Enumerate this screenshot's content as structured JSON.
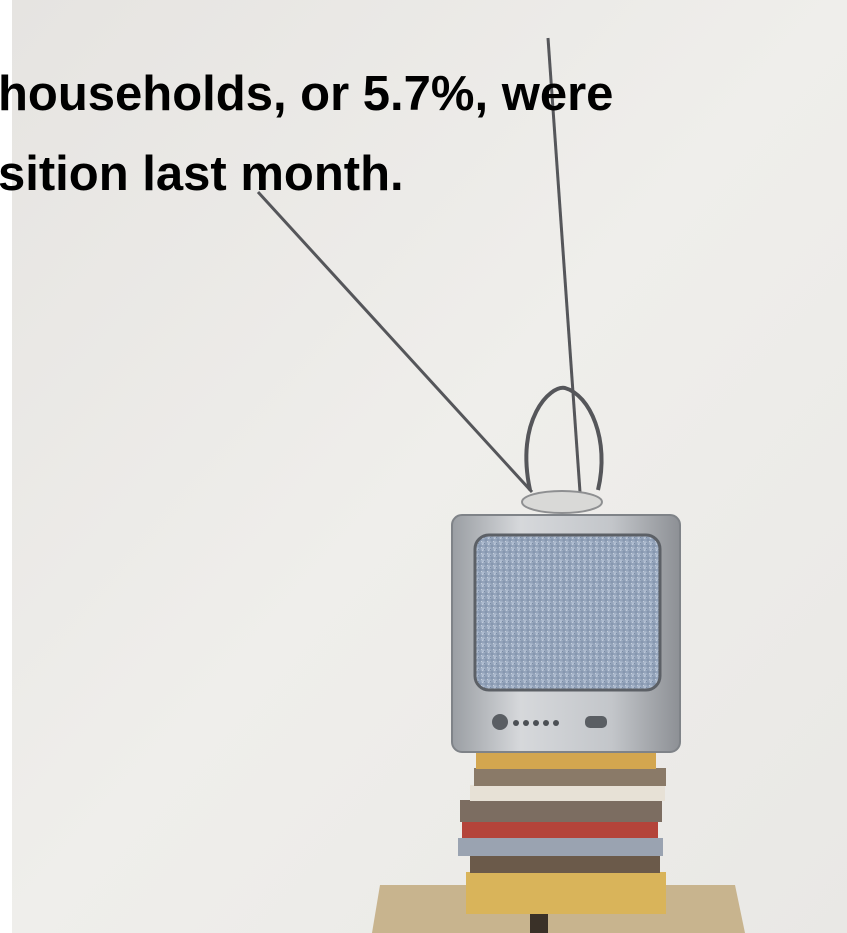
{
  "caption": {
    "lines": [
      "households, or 5.7%, were",
      "sition last month."
    ]
  }
}
